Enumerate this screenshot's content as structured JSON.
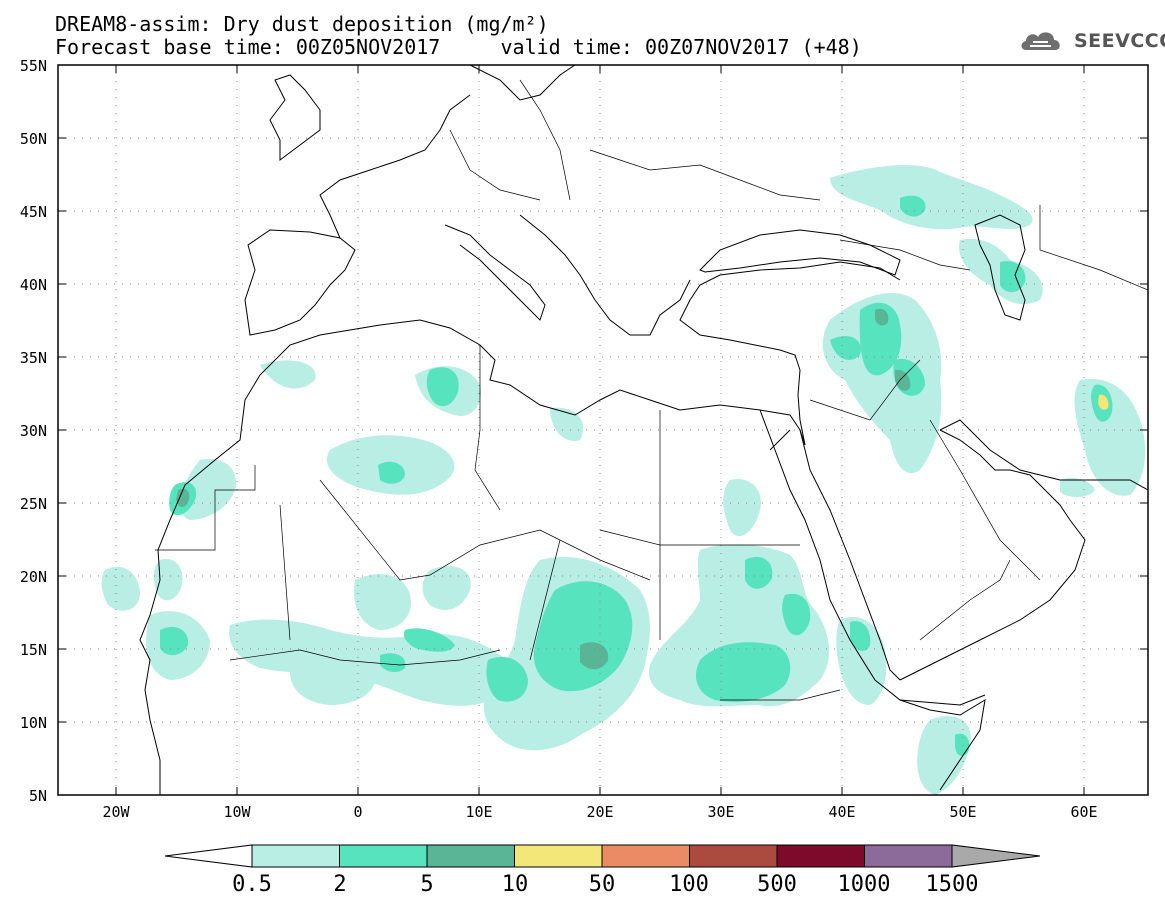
{
  "title": {
    "line1": "DREAM8-assim: Dry dust deposition (mg/m²)",
    "line2": "Forecast base time: 00Z05NOV2017     valid time: 00Z07NOV2017 (+48)"
  },
  "logo": {
    "icon": "cloud-icon",
    "text": "SEEVCCC"
  },
  "axes": {
    "lat_labels": [
      "55N",
      "50N",
      "45N",
      "40N",
      "35N",
      "30N",
      "25N",
      "20N",
      "15N",
      "10N",
      "5N"
    ],
    "lon_labels": [
      "20W",
      "10W",
      "0",
      "10E",
      "20E",
      "30E",
      "40E",
      "50E",
      "60E"
    ],
    "lat_range": [
      5,
      55
    ],
    "lon_range": [
      -25,
      65
    ]
  },
  "colorbar": {
    "labels": [
      "0.5",
      "2",
      "5",
      "10",
      "50",
      "100",
      "500",
      "1000",
      "1500"
    ],
    "colors": [
      "#b9eee4",
      "#58e3bf",
      "#5ab597",
      "#f3e77a",
      "#ea8b65",
      "#ab4a3f",
      "#7d0a2a",
      "#8c6a9a"
    ],
    "under_color": "#ffffff",
    "over_color": "#a9a9a9"
  },
  "dust_colors": {
    "light": "#b9eee4",
    "medium": "#58e3bf",
    "dark": "#5ab597",
    "yellow": "#f3e77a"
  }
}
